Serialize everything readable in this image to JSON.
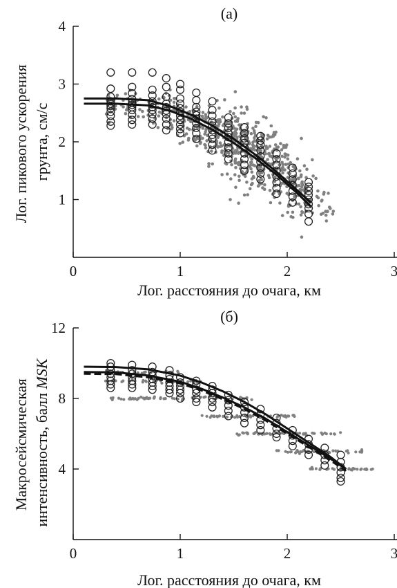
{
  "chart_data": [
    {
      "type": "scatter",
      "panel_label": "(а)",
      "xlabel": "Лог. расстояния до очага, км",
      "ylabel": [
        "Лог. пикового ускорения",
        "грунта, см/с"
      ],
      "xlim": [
        0,
        3
      ],
      "ylim": [
        0,
        4
      ],
      "x_ticks": [
        0,
        1,
        2,
        3
      ],
      "y_ticks": [
        1,
        2,
        3,
        4
      ],
      "grid": false,
      "colors": {
        "circles": "#222222",
        "dots": "#808080",
        "curves": "#111111"
      },
      "circle_columns": [
        {
          "x": 0.35,
          "y": [
            2.28,
            2.35,
            2.45,
            2.52,
            2.58,
            2.62,
            2.66,
            2.7,
            2.78,
            2.92,
            3.2
          ]
        },
        {
          "x": 0.55,
          "y": [
            2.3,
            2.38,
            2.47,
            2.55,
            2.6,
            2.64,
            2.68,
            2.74,
            2.84,
            2.95,
            3.2
          ]
        },
        {
          "x": 0.74,
          "y": [
            2.3,
            2.4,
            2.48,
            2.55,
            2.6,
            2.65,
            2.7,
            2.8,
            2.9,
            3.2
          ]
        },
        {
          "x": 0.87,
          "y": [
            2.2,
            2.3,
            2.4,
            2.48,
            2.54,
            2.6,
            2.66,
            2.78,
            2.95,
            3.1
          ]
        },
        {
          "x": 1.0,
          "y": [
            2.15,
            2.22,
            2.3,
            2.38,
            2.45,
            2.52,
            2.58,
            2.66,
            2.75,
            2.9,
            3.0
          ]
        },
        {
          "x": 1.15,
          "y": [
            2.05,
            2.15,
            2.24,
            2.32,
            2.4,
            2.46,
            2.52,
            2.6,
            2.72,
            2.85
          ]
        },
        {
          "x": 1.3,
          "y": [
            1.85,
            1.95,
            2.05,
            2.12,
            2.2,
            2.28,
            2.35,
            2.45,
            2.55,
            2.7
          ]
        },
        {
          "x": 1.45,
          "y": [
            1.7,
            1.8,
            1.9,
            2.0,
            2.08,
            2.15,
            2.24,
            2.32,
            2.42
          ]
        },
        {
          "x": 1.6,
          "y": [
            1.5,
            1.6,
            1.7,
            1.8,
            1.9,
            1.98,
            2.06,
            2.15,
            2.25
          ]
        },
        {
          "x": 1.75,
          "y": [
            1.35,
            1.45,
            1.55,
            1.65,
            1.75,
            1.85,
            1.95,
            2.02,
            2.1
          ]
        },
        {
          "x": 1.9,
          "y": [
            1.1,
            1.2,
            1.3,
            1.4,
            1.5,
            1.6,
            1.7,
            1.8
          ]
        },
        {
          "x": 2.05,
          "y": [
            0.95,
            1.05,
            1.15,
            1.25,
            1.35,
            1.45,
            1.55
          ]
        },
        {
          "x": 2.2,
          "y": [
            0.62,
            0.75,
            0.85,
            0.92,
            1.0,
            1.08,
            1.15,
            1.22,
            1.3
          ]
        }
      ],
      "dot_clusters": [
        {
          "x": 0.35,
          "y": 2.65,
          "sx": 0.05,
          "sy": 0.12,
          "n": 20
        },
        {
          "x": 0.55,
          "y": 2.65,
          "sx": 0.05,
          "sy": 0.12,
          "n": 20
        },
        {
          "x": 0.75,
          "y": 2.55,
          "sx": 0.06,
          "sy": 0.15,
          "n": 25
        },
        {
          "x": 0.95,
          "y": 2.45,
          "sx": 0.07,
          "sy": 0.18,
          "n": 35
        },
        {
          "x": 1.15,
          "y": 2.3,
          "sx": 0.08,
          "sy": 0.22,
          "n": 60
        },
        {
          "x": 1.35,
          "y": 2.15,
          "sx": 0.08,
          "sy": 0.25,
          "n": 90
        },
        {
          "x": 1.55,
          "y": 1.95,
          "sx": 0.08,
          "sy": 0.28,
          "n": 130
        },
        {
          "x": 1.75,
          "y": 1.7,
          "sx": 0.09,
          "sy": 0.3,
          "n": 130
        },
        {
          "x": 1.95,
          "y": 1.45,
          "sx": 0.09,
          "sy": 0.3,
          "n": 100
        },
        {
          "x": 2.15,
          "y": 1.15,
          "sx": 0.08,
          "sy": 0.28,
          "n": 60
        },
        {
          "x": 2.35,
          "y": 0.75,
          "sx": 0.06,
          "sy": 0.2,
          "n": 18
        }
      ],
      "curves": [
        {
          "style": "solid",
          "x": [
            0.1,
            0.4,
            0.7,
            0.9,
            1.1,
            1.3,
            1.5,
            1.7,
            1.9,
            2.1,
            2.22
          ],
          "y": [
            2.75,
            2.75,
            2.72,
            2.62,
            2.47,
            2.28,
            2.05,
            1.78,
            1.48,
            1.15,
            0.95
          ]
        },
        {
          "style": "solid",
          "x": [
            0.1,
            0.4,
            0.7,
            0.9,
            1.1,
            1.3,
            1.5,
            1.7,
            1.9,
            2.1,
            2.22
          ],
          "y": [
            2.66,
            2.66,
            2.63,
            2.54,
            2.4,
            2.21,
            1.98,
            1.72,
            1.43,
            1.1,
            0.88
          ]
        }
      ]
    },
    {
      "type": "scatter",
      "panel_label": "(б)",
      "xlabel": "Лог. расстояния до очага, км",
      "ylabel": [
        "Макросейсмическая",
        "интенсивность, балл "
      ],
      "ylabel_italic": "MSK",
      "xlim": [
        0,
        3
      ],
      "ylim": [
        0,
        12
      ],
      "x_ticks": [
        0,
        1,
        2,
        3
      ],
      "y_ticks": [
        4,
        8,
        12
      ],
      "grid": false,
      "colors": {
        "circles": "#222222",
        "dots": "#808080",
        "curves": "#111111"
      },
      "circle_columns": [
        {
          "x": 0.35,
          "y": [
            8.6,
            8.8,
            9.0,
            9.2,
            9.4,
            9.6,
            9.8,
            10.0
          ]
        },
        {
          "x": 0.55,
          "y": [
            8.6,
            8.8,
            9.0,
            9.2,
            9.4,
            9.6,
            9.9
          ]
        },
        {
          "x": 0.74,
          "y": [
            8.5,
            8.7,
            8.9,
            9.1,
            9.3,
            9.5,
            9.8
          ]
        },
        {
          "x": 0.9,
          "y": [
            8.3,
            8.5,
            8.7,
            8.9,
            9.1,
            9.3,
            9.6
          ]
        },
        {
          "x": 1.0,
          "y": [
            8.0,
            8.3,
            8.5,
            8.7,
            8.9,
            9.2
          ]
        },
        {
          "x": 1.15,
          "y": [
            7.8,
            8.0,
            8.3,
            8.5,
            8.8,
            9.0
          ]
        },
        {
          "x": 1.3,
          "y": [
            7.5,
            7.8,
            8.0,
            8.3,
            8.5,
            8.7
          ]
        },
        {
          "x": 1.45,
          "y": [
            7.0,
            7.3,
            7.6,
            7.9,
            8.2
          ]
        },
        {
          "x": 1.6,
          "y": [
            6.6,
            6.9,
            7.2,
            7.5,
            7.8
          ]
        },
        {
          "x": 1.75,
          "y": [
            6.2,
            6.5,
            6.8,
            7.1,
            7.4
          ]
        },
        {
          "x": 1.9,
          "y": [
            5.8,
            6.0,
            6.3,
            6.6,
            6.9
          ]
        },
        {
          "x": 2.05,
          "y": [
            5.3,
            5.6,
            5.9,
            6.2
          ]
        },
        {
          "x": 2.2,
          "y": [
            4.8,
            5.1,
            5.4,
            5.7
          ]
        },
        {
          "x": 2.35,
          "y": [
            4.2,
            4.5,
            4.8,
            5.2
          ]
        },
        {
          "x": 2.5,
          "y": [
            3.3,
            3.5,
            3.8,
            4.1,
            4.4,
            4.8
          ]
        }
      ],
      "dot_levels": [
        {
          "y": 9.5,
          "x0": 0.3,
          "x1": 1.0,
          "n": 25
        },
        {
          "y": 9.0,
          "x0": 0.3,
          "x1": 1.2,
          "n": 35
        },
        {
          "y": 8.0,
          "x0": 0.3,
          "x1": 1.7,
          "n": 55
        },
        {
          "y": 7.0,
          "x0": 1.2,
          "x1": 2.1,
          "n": 45
        },
        {
          "y": 6.0,
          "x0": 1.5,
          "x1": 2.5,
          "n": 55
        },
        {
          "y": 5.0,
          "x0": 1.9,
          "x1": 2.7,
          "n": 45
        },
        {
          "y": 4.0,
          "x0": 2.2,
          "x1": 2.8,
          "n": 35
        }
      ],
      "curves": [
        {
          "style": "solid",
          "x": [
            0.1,
            0.4,
            0.7,
            1.0,
            1.2,
            1.4,
            1.6,
            1.8,
            2.0,
            2.2,
            2.4,
            2.55
          ],
          "y": [
            9.8,
            9.78,
            9.65,
            9.3,
            8.9,
            8.4,
            7.8,
            7.1,
            6.3,
            5.5,
            4.7,
            4.0
          ]
        },
        {
          "style": "dashed",
          "x": [
            0.1,
            0.4,
            0.7,
            1.0,
            1.2,
            1.4,
            1.6,
            1.8,
            2.0,
            2.2,
            2.4,
            2.55
          ],
          "y": [
            9.4,
            9.38,
            9.2,
            8.85,
            8.45,
            7.95,
            7.4,
            6.75,
            6.0,
            5.25,
            4.5,
            3.9
          ]
        },
        {
          "style": "solid",
          "x": [
            0.1,
            0.4,
            0.7,
            1.0,
            1.2,
            1.4,
            1.6,
            1.8,
            2.0,
            2.2,
            2.4,
            2.55
          ],
          "y": [
            9.5,
            9.48,
            9.3,
            8.95,
            8.55,
            8.05,
            7.5,
            6.85,
            6.1,
            5.35,
            4.6,
            4.0
          ]
        }
      ]
    }
  ]
}
